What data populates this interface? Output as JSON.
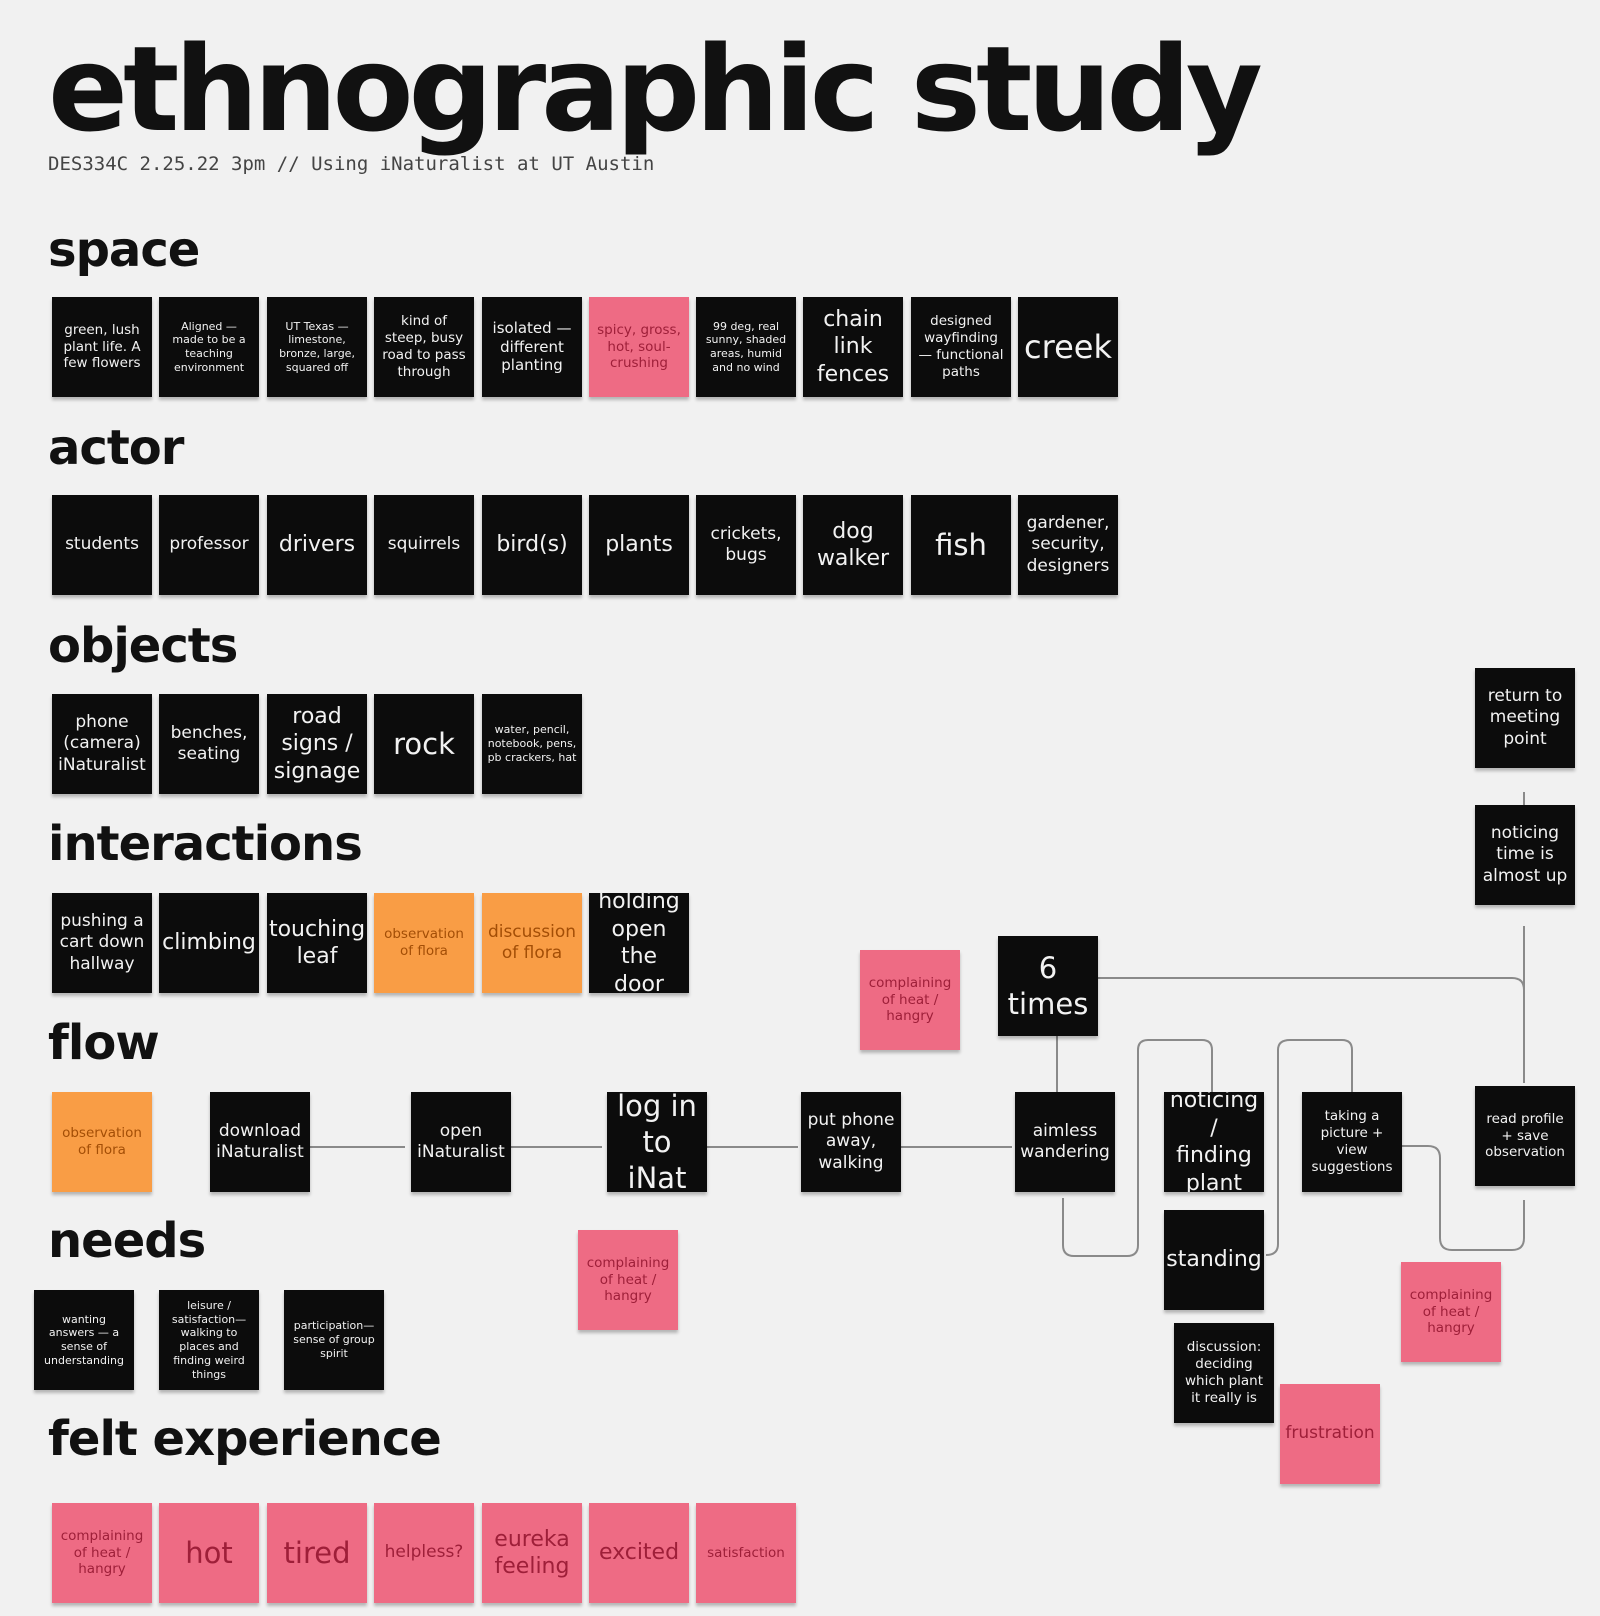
{
  "header": {
    "title": "ethnographic study",
    "subtitle": "DES334C 2.25.22 3pm // Using iNaturalist at UT Austin"
  },
  "colors": {
    "background": "#f1f1f1",
    "black_note": "#0c0c0c",
    "pink_note": "#ee6b84",
    "orange_note": "#f99d45"
  },
  "sections": {
    "space": {
      "label": "space",
      "notes": [
        "green, lush plant life. A few flowers",
        "Aligned — made to be a teaching environment",
        "UT Texas — limestone, bronze, large, squared off",
        "kind of steep, busy road to pass through",
        "isolated — different planting",
        "spicy, gross, hot, soul-crushing",
        "99 deg, real sunny, shaded areas, humid and no wind",
        "chain link fences",
        "designed wayfinding — functional paths",
        "creek"
      ]
    },
    "actor": {
      "label": "actor",
      "notes": [
        "students",
        "professor",
        "drivers",
        "squirrels",
        "bird(s)",
        "plants",
        "crickets, bugs",
        "dog walker",
        "fish",
        "gardener, security, designers"
      ]
    },
    "objects": {
      "label": "objects",
      "notes": [
        "phone (camera) iNaturalist",
        "benches, seating",
        "road signs / signage",
        "rock",
        "water, pencil, notebook, pens, pb crackers, hat"
      ]
    },
    "interactions": {
      "label": "interactions",
      "notes": [
        "pushing a cart down hallway",
        "climbing",
        "touching leaf",
        "observation of flora",
        "discussion of flora",
        "holding open the door"
      ]
    },
    "flow": {
      "label": "flow",
      "notes": [
        "observation of flora",
        "download iNaturalist",
        "open iNaturalist",
        "log in to iNat",
        "put phone away, walking",
        "aimless wandering",
        "noticing / finding plant",
        "taking a picture + view suggestions",
        "read profile + save observation",
        "standing",
        "6 times",
        "noticing time is almost up",
        "return to meeting point",
        "complaining of heat / hangry",
        "complaining of heat / hangry",
        "discussion: deciding which plant it really is",
        "frustration",
        "complaining of heat / hangry"
      ]
    },
    "needs": {
      "label": "needs",
      "notes": [
        "wanting answers — a sense of understanding",
        "leisure / satisfaction— walking to places and finding weird things",
        "participation— sense of group spirit"
      ]
    },
    "felt_experience": {
      "label": "felt experience",
      "notes": [
        "complaining of heat / hangry",
        "hot",
        "tired",
        "helpless?",
        "eureka feeling",
        "excited",
        "satisfaction"
      ]
    }
  }
}
